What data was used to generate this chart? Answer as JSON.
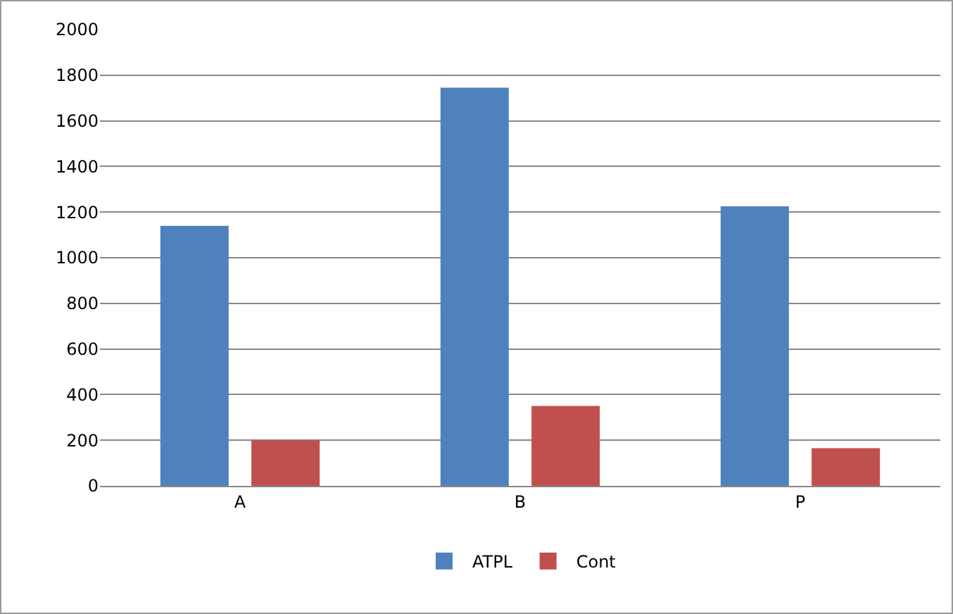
{
  "chart_data": {
    "type": "bar",
    "categories": [
      "A",
      "B",
      "P"
    ],
    "series": [
      {
        "name": "ATPL",
        "color": "#4f81bd",
        "values": [
          1140,
          1745,
          1225
        ]
      },
      {
        "name": "Cont",
        "color": "#c0504d",
        "values": [
          200,
          350,
          165
        ]
      }
    ],
    "ylim": [
      0,
      2000
    ],
    "yticks": [
      0,
      200,
      400,
      600,
      800,
      1000,
      1200,
      1400,
      1600,
      1800,
      2000
    ],
    "grid": "y",
    "legend": "bottom"
  }
}
